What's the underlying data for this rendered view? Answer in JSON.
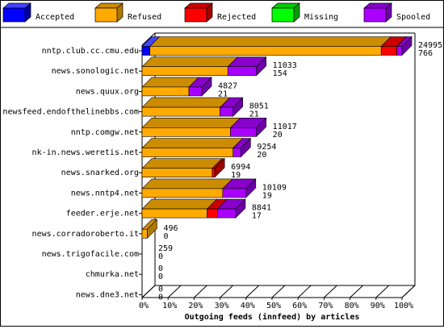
{
  "chart_data": {
    "type": "bar",
    "stacked": true,
    "orientation": "horizontal",
    "xlabel": "Outgoing feeds (innfeed) by articles",
    "xlim": [
      0,
      100
    ],
    "x_ticks": [
      "0%",
      "10%",
      "20%",
      "30%",
      "40%",
      "50%",
      "60%",
      "70%",
      "80%",
      "90%",
      "100%"
    ],
    "legend_position": "top",
    "categories": [
      "nntp.club.cc.cmu.edu",
      "news.sonologic.net",
      "news.quux.org",
      "newsfeed.endofthelinebbs.com",
      "nntp.comgw.net",
      "nk-in.news.weretis.net",
      "news.snarked.org",
      "news.nntp4.net",
      "feeder.erje.net",
      "news.corradoroberto.it",
      "news.trigofacile.com",
      "chmurka.net",
      "news.dne3.net"
    ],
    "offered_labels": [
      "24995",
      "11033",
      "4827",
      "8051",
      "11017",
      "9254",
      "6994",
      "10109",
      "8841",
      "496",
      "259",
      "0",
      "0"
    ],
    "accepted_labels": [
      "766",
      "154",
      "21",
      "21",
      "20",
      "20",
      "19",
      "19",
      "17",
      "0",
      "0",
      "0",
      "0"
    ],
    "series": [
      {
        "name": "Accepted",
        "color": "#0000ff",
        "side": "#0000a0",
        "top": "#4444ff",
        "values": [
          3,
          0,
          0,
          0,
          0,
          0,
          0,
          0,
          0,
          0,
          0,
          0,
          0
        ]
      },
      {
        "name": "Refused",
        "color": "#ffaa00",
        "side": "#b07800",
        "top": "#cc8c00",
        "values": [
          89,
          33,
          18,
          30,
          34,
          35,
          27,
          31,
          25,
          2,
          0,
          0,
          0
        ]
      },
      {
        "name": "Rejected",
        "color": "#ff0000",
        "side": "#a00000",
        "top": "#cc0000",
        "values": [
          6,
          0,
          0,
          0,
          0,
          0,
          1,
          0,
          4,
          0,
          0,
          0,
          0
        ]
      },
      {
        "name": "Missing",
        "color": "#00ff00",
        "side": "#00a000",
        "top": "#00cc00",
        "values": [
          0,
          0,
          0,
          0,
          0,
          0,
          0,
          0,
          0,
          0,
          0,
          0,
          0
        ]
      },
      {
        "name": "Spooled",
        "color": "#aa00ff",
        "side": "#6e00a8",
        "top": "#8800cc",
        "values": [
          2,
          11,
          5,
          5,
          10,
          3,
          0,
          9,
          7,
          0,
          0,
          0,
          0
        ]
      }
    ]
  }
}
